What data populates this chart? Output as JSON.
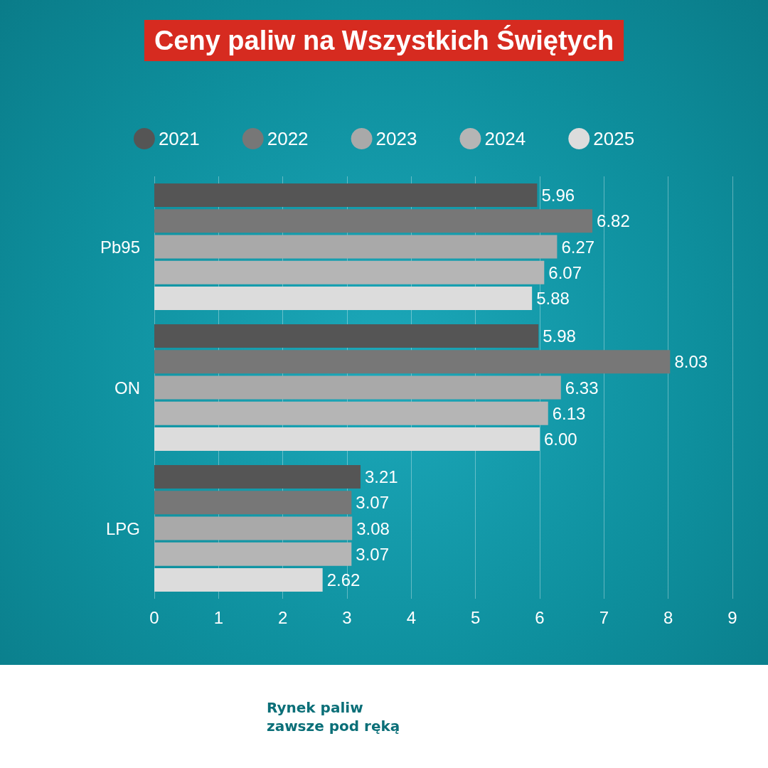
{
  "chart_data": {
    "type": "bar",
    "orientation": "horizontal",
    "title": "Ceny paliw na Wszystkich Świętych",
    "categories": [
      "Pb95",
      "ON",
      "LPG"
    ],
    "series": [
      {
        "name": "2021",
        "color": "#555555",
        "values": [
          5.96,
          5.98,
          3.21
        ],
        "value_labels": [
          "5.96",
          "5.98",
          "3.21"
        ]
      },
      {
        "name": "2022",
        "color": "#777777",
        "values": [
          6.82,
          8.03,
          3.07
        ],
        "value_labels": [
          "6.82",
          "8.03",
          "3.07"
        ]
      },
      {
        "name": "2023",
        "color": "#a9a9a9",
        "values": [
          6.27,
          6.33,
          3.08
        ],
        "value_labels": [
          "6.27",
          "6.33",
          "3.08"
        ]
      },
      {
        "name": "2024",
        "color": "#b5b5b5",
        "values": [
          6.07,
          6.13,
          3.07
        ],
        "value_labels": [
          "6.07",
          "6.13",
          "3.07"
        ]
      },
      {
        "name": "2025",
        "color": "#dcdcdc",
        "values": [
          5.88,
          6.0,
          2.62
        ],
        "value_labels": [
          "5.88",
          "6.00",
          "2.62"
        ]
      }
    ],
    "xlim": [
      0,
      9
    ],
    "xticks": [
      0,
      1,
      2,
      3,
      4,
      5,
      6,
      7,
      8,
      9
    ],
    "grid": "x",
    "legend": "top",
    "annotations": [
      "Rynek paliw zawsze pod ręką"
    ]
  }
}
